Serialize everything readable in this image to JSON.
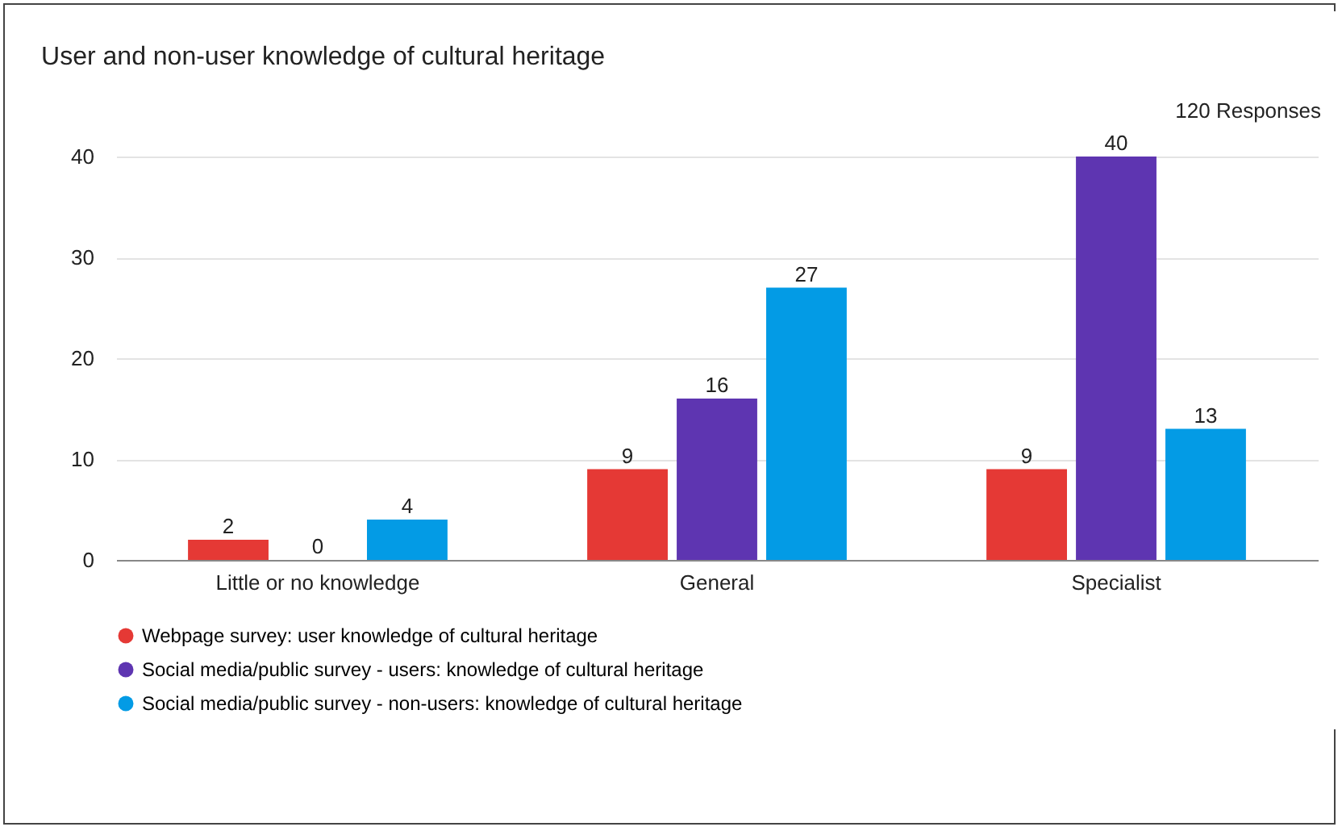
{
  "chart_data": {
    "type": "bar",
    "title": "User and non-user knowledge of cultural heritage",
    "annotations": [
      "120 Responses"
    ],
    "categories": [
      "Little or no knowledge",
      "General",
      "Specialist"
    ],
    "series": [
      {
        "name": "Webpage survey: user knowledge of cultural heritage",
        "color": "#e53935",
        "values": [
          2,
          9,
          9
        ]
      },
      {
        "name": "Social media/public survey - users: knowledge of cultural heritage",
        "color": "#5e35b1",
        "values": [
          0,
          16,
          40
        ]
      },
      {
        "name": "Social media/public survey - non-users: knowledge of cultural heritage",
        "color": "#039be5",
        "values": [
          4,
          27,
          13
        ]
      }
    ],
    "ylim": [
      0,
      40
    ],
    "yticks": [
      0,
      10,
      20,
      30,
      40
    ],
    "grid": "y",
    "legend": "bottom",
    "data_labels": true
  }
}
